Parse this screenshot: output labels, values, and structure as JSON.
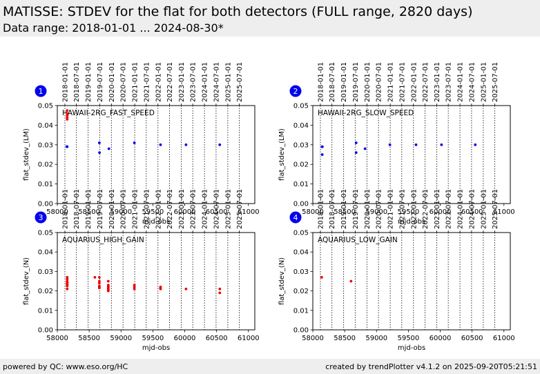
{
  "header": {
    "title": "MATISSE: STDEV for the flat for both detectors (FULL range, 2820 days)",
    "subtitle": "Data range: 2018-01-01 ... 2024-08-30*"
  },
  "footer": {
    "left": "powered by QC: www.eso.org/HC",
    "right": "created by trendPlotter v4.1.2 on 2025-09-20T05:21:51"
  },
  "colors": {
    "blue": "#0000ee",
    "red": "#ee0000",
    "badge": "#0000ee"
  },
  "chart_data": [
    {
      "type": "scatter",
      "badge": "1",
      "label": "HAWAII-2RG_FAST_SPEED",
      "xlabel": "mjd-obs",
      "ylabel": "flat_stdev_(LM)",
      "xlim": [
        58000,
        61100
      ],
      "ylim": [
        0,
        0.05
      ],
      "xticks": [
        58000,
        58500,
        59000,
        59500,
        60000,
        60500,
        61000
      ],
      "yticks": [
        "0.00",
        "0.01",
        "0.02",
        "0.03",
        "0.04",
        "0.05"
      ],
      "date_ticks": [
        "2018-01-01",
        "2018-07-01",
        "2019-01-01",
        "2019-07-01",
        "2020-01-01",
        "2020-07-01",
        "2021-01-01",
        "2021-07-01",
        "2022-01-01",
        "2022-07-01",
        "2023-01-01",
        "2023-07-01",
        "2024-01-01",
        "2024-07-01",
        "2025-01-01",
        "2025-07-01"
      ],
      "grid": "vertical dotted lines at date ticks",
      "series": [
        {
          "color": "blue",
          "points": [
            [
              58150,
              0.0291
            ],
            [
              58152,
              0.029
            ],
            [
              58155,
              0.029
            ],
            [
              58660,
              0.031
            ],
            [
              58662,
              0.026
            ],
            [
              58810,
              0.028
            ],
            [
              59210,
              0.031
            ],
            [
              59620,
              0.03
            ],
            [
              60020,
              0.03
            ],
            [
              60550,
              0.03
            ]
          ]
        },
        {
          "color": "red",
          "points": [
            [
              58155,
              0.0475
            ],
            [
              58155,
              0.046
            ],
            [
              58155,
              0.045
            ],
            [
              58155,
              0.044
            ],
            [
              58155,
              0.043
            ]
          ]
        }
      ]
    },
    {
      "type": "scatter",
      "badge": "2",
      "label": "HAWAII-2RG_SLOW_SPEED",
      "xlabel": "mjd-obs",
      "ylabel": "flat_stdev_(LM)",
      "xlim": [
        58000,
        61100
      ],
      "ylim": [
        0,
        0.05
      ],
      "xticks": [
        58000,
        58500,
        59000,
        59500,
        60000,
        60500,
        61000
      ],
      "yticks": [
        "0.00",
        "0.01",
        "0.02",
        "0.03",
        "0.04",
        "0.05"
      ],
      "date_ticks": [
        "2018-01-01",
        "2018-07-01",
        "2019-01-01",
        "2019-07-01",
        "2020-01-01",
        "2020-07-01",
        "2021-01-01",
        "2021-07-01",
        "2022-01-01",
        "2022-07-01",
        "2023-01-01",
        "2023-07-01",
        "2024-01-01",
        "2024-07-01",
        "2025-01-01",
        "2025-07-01"
      ],
      "grid": "vertical dotted lines at date ticks",
      "series": [
        {
          "color": "blue",
          "points": [
            [
              58145,
              0.029
            ],
            [
              58150,
              0.029
            ],
            [
              58148,
              0.025
            ],
            [
              58680,
              0.031
            ],
            [
              58680,
              0.026
            ],
            [
              58820,
              0.028
            ],
            [
              59210,
              0.03
            ],
            [
              59620,
              0.03
            ],
            [
              60020,
              0.03
            ],
            [
              60550,
              0.03
            ]
          ]
        }
      ]
    },
    {
      "type": "scatter",
      "badge": "3",
      "label": "AQUARIUS_HIGH_GAIN",
      "xlabel": "mjd-obs",
      "ylabel": "flat_stdev_(N)",
      "xlim": [
        58000,
        61100
      ],
      "ylim": [
        0,
        0.05
      ],
      "xticks": [
        58000,
        58500,
        59000,
        59500,
        60000,
        60500,
        61000
      ],
      "yticks": [
        "0.00",
        "0.01",
        "0.02",
        "0.03",
        "0.04",
        "0.05"
      ],
      "date_ticks": [
        "2018-01-01",
        "2018-07-01",
        "2019-01-01",
        "2019-07-01",
        "2020-01-01",
        "2020-07-01",
        "2021-01-01",
        "2021-07-01",
        "2022-01-01",
        "2022-07-01",
        "2023-01-01",
        "2023-07-01",
        "2024-01-01",
        "2024-07-01",
        "2025-01-01",
        "2025-07-01"
      ],
      "grid": "vertical dotted lines at date ticks",
      "series": [
        {
          "color": "red",
          "points": [
            [
              58155,
              0.027
            ],
            [
              58155,
              0.026
            ],
            [
              58155,
              0.025
            ],
            [
              58155,
              0.0245
            ],
            [
              58155,
              0.024
            ],
            [
              58155,
              0.0235
            ],
            [
              58155,
              0.023
            ],
            [
              58155,
              0.0225
            ],
            [
              58155,
              0.021
            ],
            [
              58590,
              0.027
            ],
            [
              58660,
              0.027
            ],
            [
              58660,
              0.025
            ],
            [
              58660,
              0.024
            ],
            [
              58660,
              0.0225
            ],
            [
              58660,
              0.022
            ],
            [
              58660,
              0.0215
            ],
            [
              58800,
              0.025
            ],
            [
              58800,
              0.023
            ],
            [
              58800,
              0.0225
            ],
            [
              58800,
              0.022
            ],
            [
              58800,
              0.0215
            ],
            [
              58800,
              0.021
            ],
            [
              58800,
              0.0205
            ],
            [
              58800,
              0.02
            ],
            [
              59210,
              0.023
            ],
            [
              59210,
              0.022
            ],
            [
              59210,
              0.021
            ],
            [
              59620,
              0.022
            ],
            [
              59620,
              0.0215
            ],
            [
              59620,
              0.021
            ],
            [
              60020,
              0.021
            ],
            [
              60550,
              0.021
            ],
            [
              60550,
              0.019
            ]
          ]
        }
      ]
    },
    {
      "type": "scatter",
      "badge": "4",
      "label": "AQUARIUS_LOW_GAIN",
      "xlabel": "mjd-obs",
      "ylabel": "flat_stdev_(N)",
      "xlim": [
        58000,
        61100
      ],
      "ylim": [
        0,
        0.05
      ],
      "xticks": [
        58000,
        58500,
        59000,
        59500,
        60000,
        60500,
        61000
      ],
      "yticks": [
        "0.00",
        "0.01",
        "0.02",
        "0.03",
        "0.04",
        "0.05"
      ],
      "date_ticks": [
        "2018-01-01",
        "2018-07-01",
        "2019-01-01",
        "2019-07-01",
        "2020-01-01",
        "2020-07-01",
        "2021-01-01",
        "2021-07-01",
        "2022-01-01",
        "2022-07-01",
        "2023-01-01",
        "2023-07-01",
        "2024-01-01",
        "2024-07-01",
        "2025-01-01",
        "2025-07-01"
      ],
      "grid": "vertical dotted lines at date ticks",
      "series": [
        {
          "color": "red",
          "points": [
            [
              58140,
              0.027
            ],
            [
              58600,
              0.025
            ]
          ]
        }
      ]
    }
  ]
}
